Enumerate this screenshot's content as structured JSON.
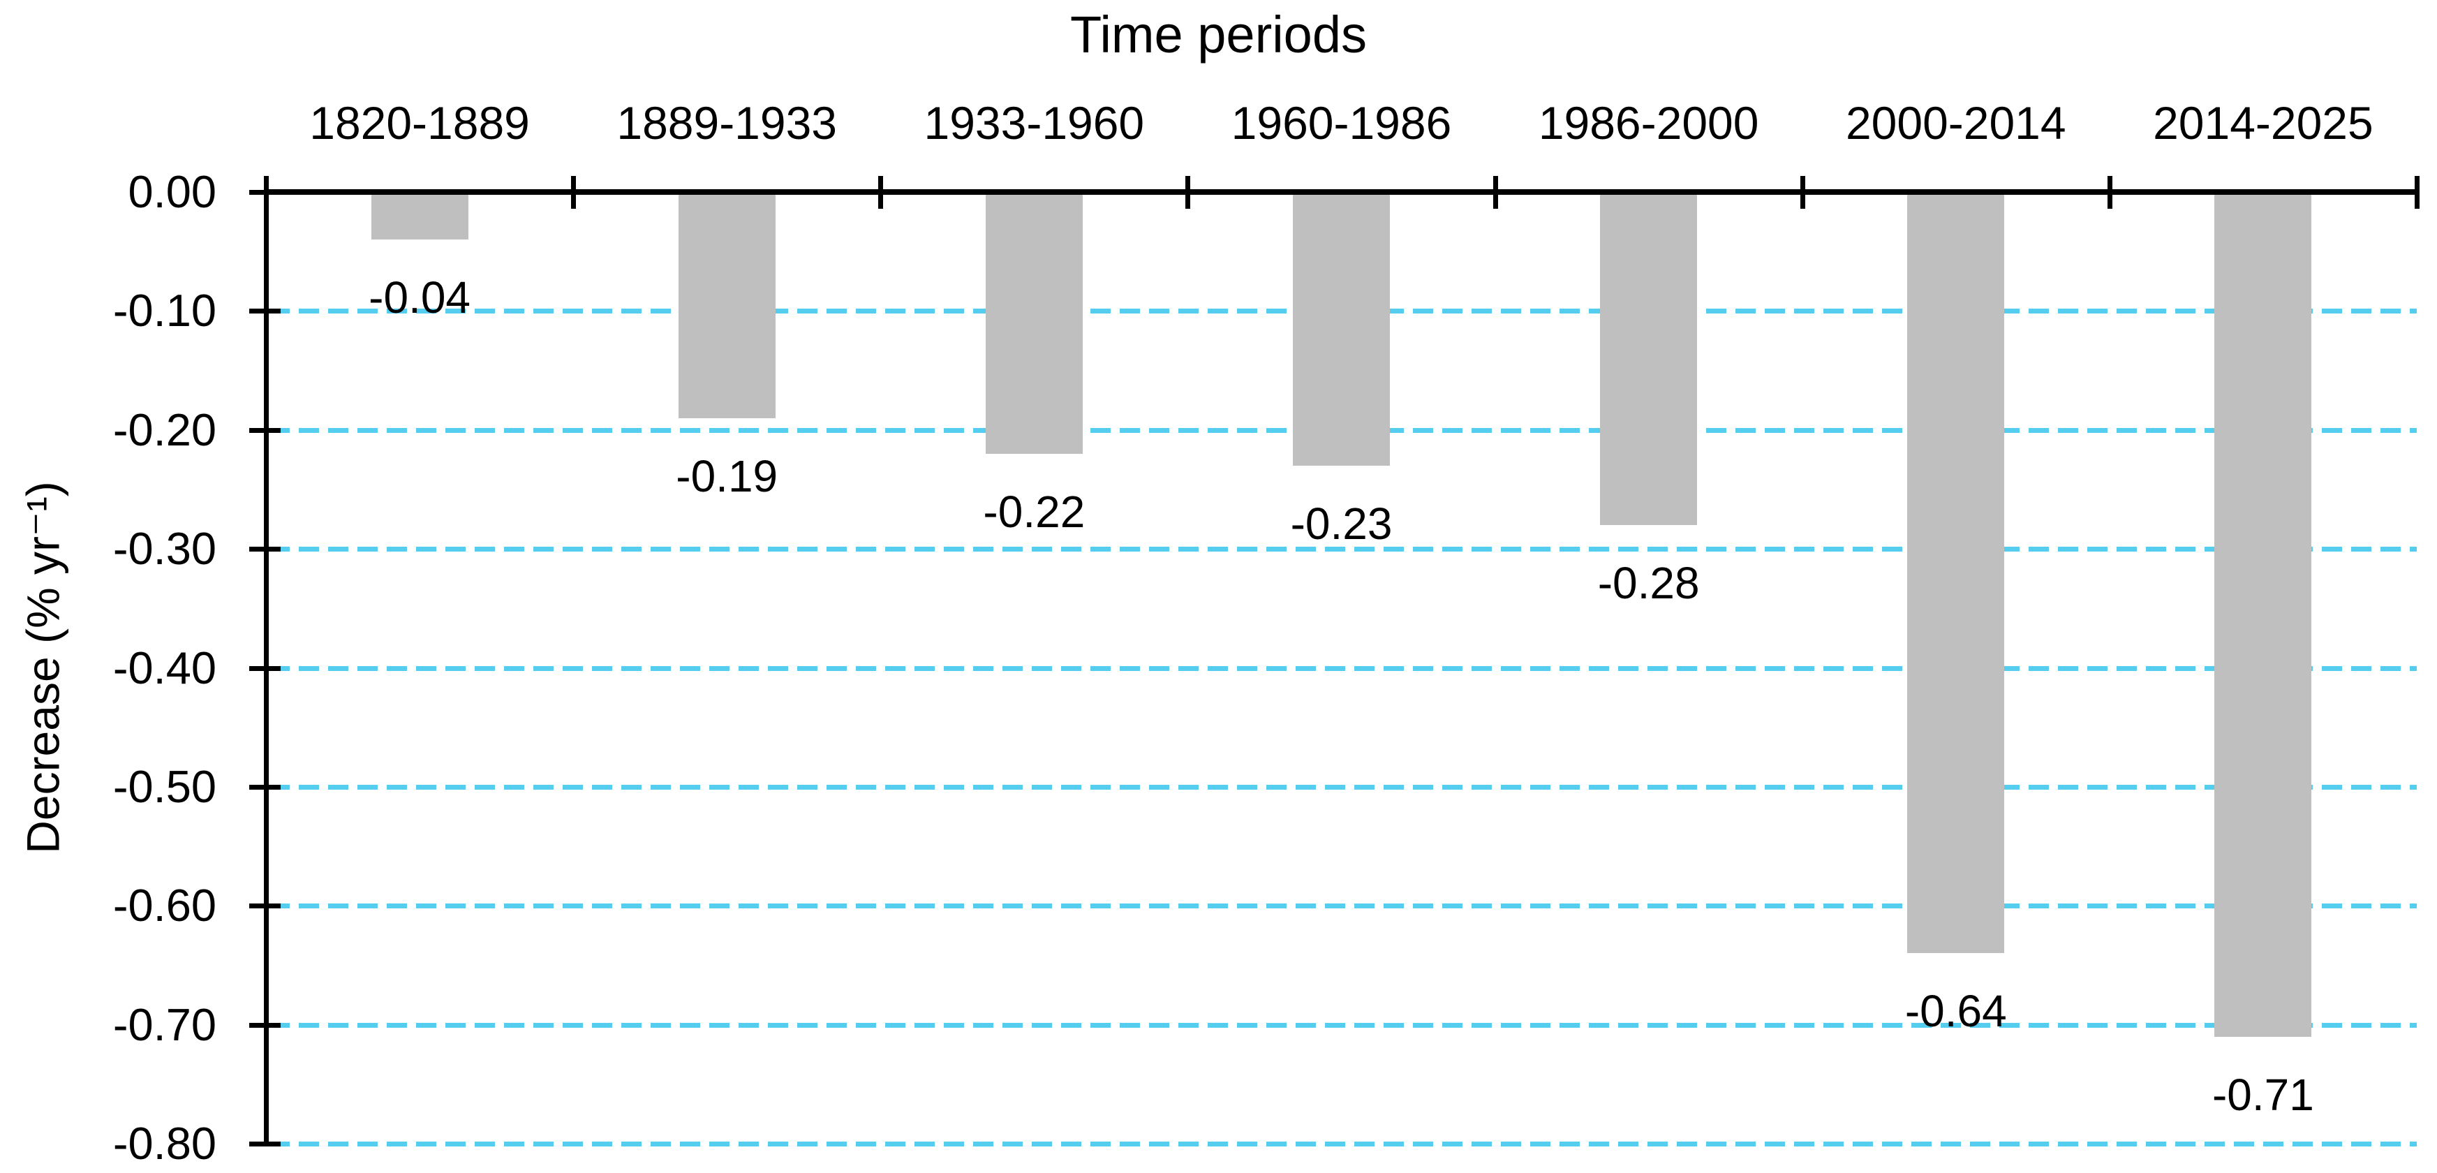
{
  "chart_data": {
    "type": "bar",
    "title": "Time periods",
    "ylabel": "Decrease (% yr⁻¹)",
    "categories": [
      "1820-1889",
      "1889-1933",
      "1933-1960",
      "1960-1986",
      "1986-2000",
      "2000-2014",
      "2014-2025"
    ],
    "values": [
      -0.04,
      -0.19,
      -0.22,
      -0.23,
      -0.28,
      -0.64,
      -0.71
    ],
    "value_labels": [
      "-0.04",
      "-0.19",
      "-0.22",
      "-0.23",
      "-0.28",
      "-0.64",
      "-0.71"
    ],
    "ytick_labels": [
      "0.00",
      "-0.10",
      "-0.20",
      "-0.30",
      "-0.40",
      "-0.50",
      "-0.60",
      "-0.70",
      "-0.80"
    ],
    "ylim": [
      -0.8,
      0.0
    ],
    "ytick_step": 0.1,
    "xlabel": "",
    "legend": "none",
    "grid": "horizontal-dashed",
    "colors": {
      "bar": "#BFBFBF",
      "gridline": "#55CDEF",
      "axis": "#000000",
      "text": "#000000",
      "background": "#FFFFFF"
    }
  }
}
